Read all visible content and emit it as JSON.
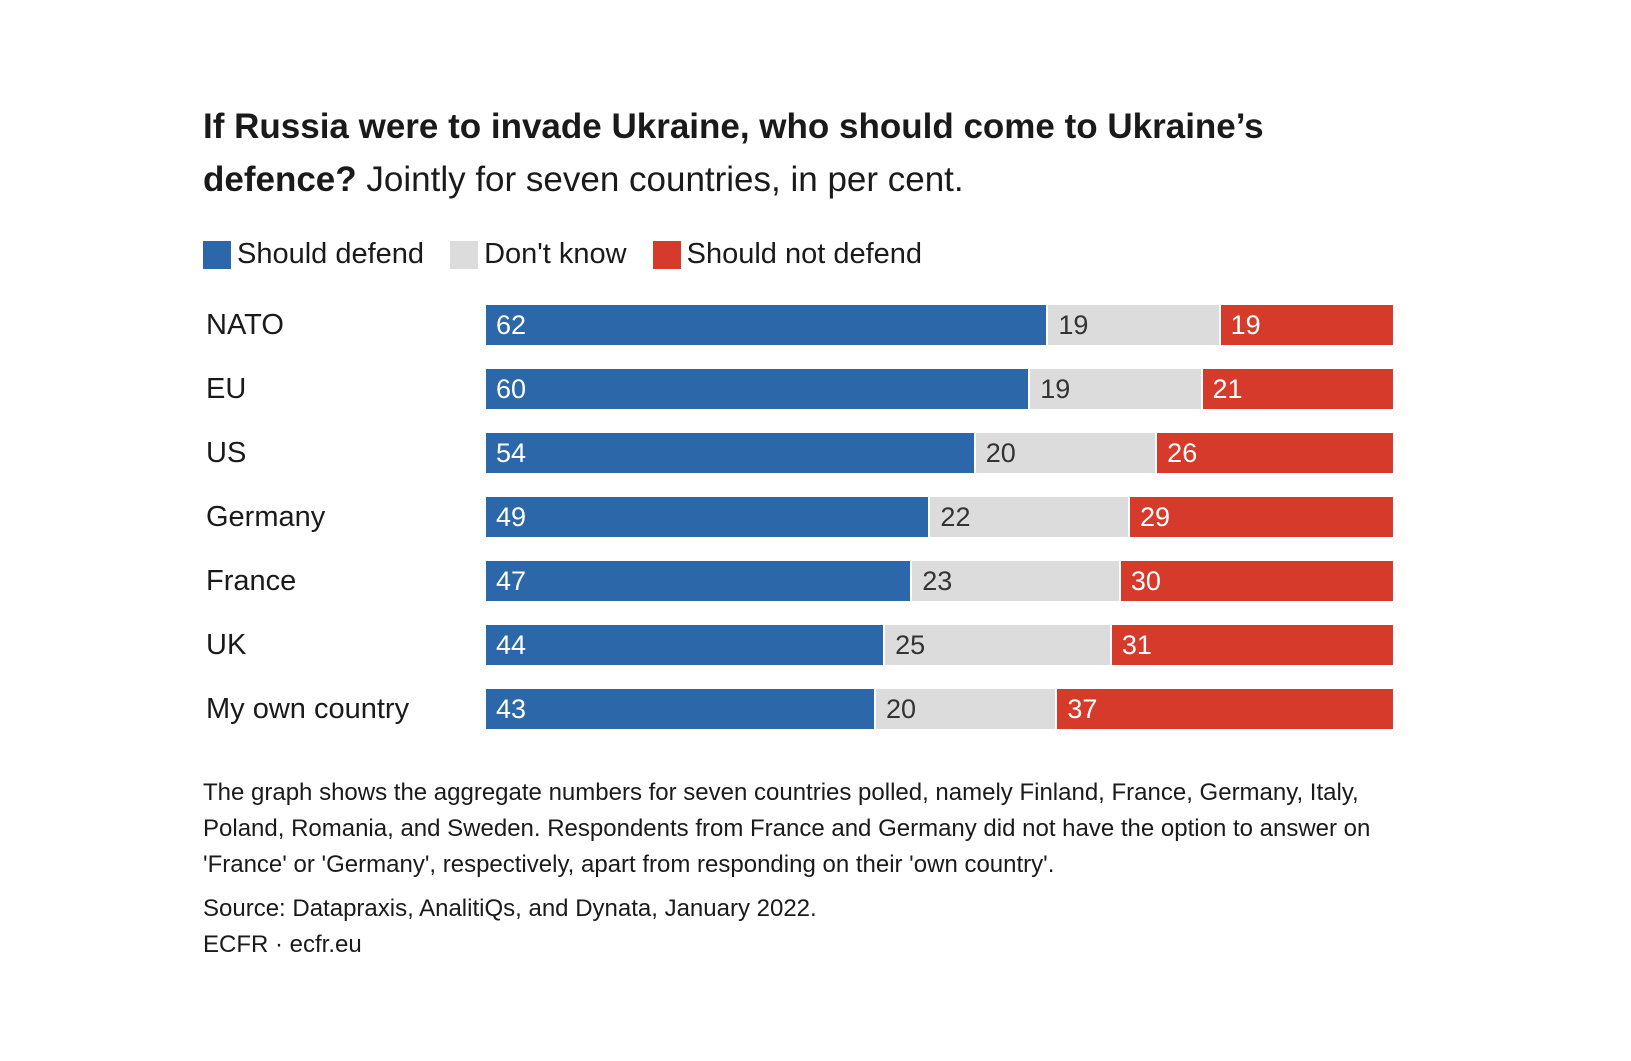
{
  "title_bold": "If Russia were to invade Ukraine, who should come to Ukraine’s defence?",
  "title_rest": "Jointly for seven countries, in per cent.",
  "colors": {
    "defend": "#2b67a9",
    "dont_know": "#dcdcdc",
    "not_defend": "#d63a2b"
  },
  "chart_data": {
    "type": "bar",
    "stacked": true,
    "orientation": "horizontal",
    "categories": [
      "NATO",
      "EU",
      "US",
      "Germany",
      "France",
      "UK",
      "My own country"
    ],
    "series": [
      {
        "name": "Should defend",
        "values": [
          62,
          60,
          54,
          49,
          47,
          44,
          43
        ]
      },
      {
        "name": "Don't know",
        "values": [
          19,
          19,
          20,
          22,
          23,
          25,
          20
        ]
      },
      {
        "name": "Should not defend",
        "values": [
          19,
          21,
          26,
          29,
          30,
          31,
          37
        ]
      }
    ],
    "xlim": [
      0,
      100
    ],
    "legend_position": "top-left",
    "grid": false
  },
  "notes": "The graph shows the aggregate numbers for seven countries polled, namely Finland, France, Germany, Italy, Poland, Romania, and Sweden. Respondents from France and Germany did not have the option to answer on 'France' or 'Germany', respectively, apart from responding on their 'own country'.",
  "source": "Source: Datapraxis, AnalitiQs, and Dynata, January 2022.",
  "credit": "ECFR · ecfr.eu"
}
